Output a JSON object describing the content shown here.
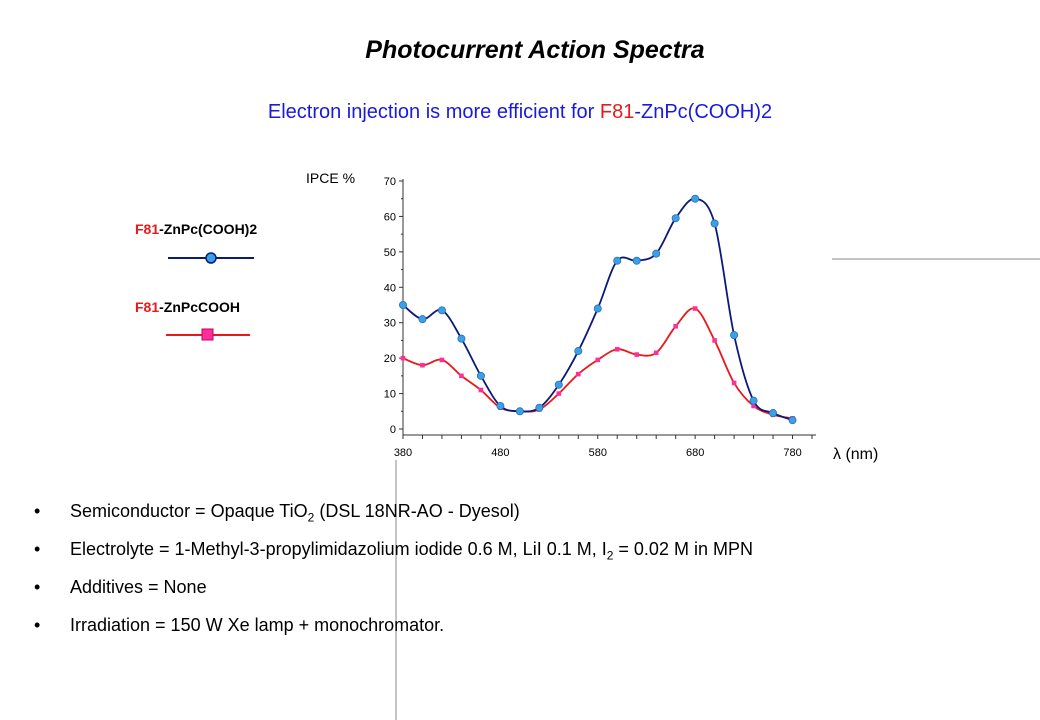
{
  "title": "Photocurrent Action Spectra",
  "subtitle": {
    "prefix": "Electron injection is more efficient for ",
    "highlight": "F81",
    "suffix": "-ZnPc(COOH)2"
  },
  "legend": [
    {
      "prefix": "F81",
      "suffix": "-ZnPc(COOH)2",
      "color": "#0a1a7a",
      "marker_color": "#3aa0e8",
      "marker": "circle"
    },
    {
      "prefix": "F81",
      "suffix": "-ZnPcCOOH",
      "color": "#e8191a",
      "marker_color": "#ff2f9a",
      "marker": "square"
    }
  ],
  "bullets": [
    {
      "symbol": "•",
      "parts": [
        "Semiconductor = Opaque TiO",
        "2",
        " (DSL 18NR-AO  - Dyesol)"
      ]
    },
    {
      "symbol": "•",
      "parts": [
        "Electrolyte =  1-Methyl-3-propylimidazolium  iodide 0.6 M, LiI 0.1 M,  I",
        "2",
        " = 0.02 M in MPN"
      ]
    },
    {
      "symbol": "•",
      "parts": [
        "Additives =  None"
      ]
    },
    {
      "symbol": "•",
      "parts": [
        "Irradiation = 150 W Xe lamp + monochromator."
      ]
    }
  ],
  "chart_data": {
    "type": "line",
    "ylabel": "IPCE %",
    "xlabel": "λ (nm)",
    "xlim": [
      380,
      800
    ],
    "ylim": [
      0,
      70
    ],
    "xticks": [
      380,
      480,
      580,
      680,
      780
    ],
    "yticks": [
      0,
      10,
      20,
      30,
      40,
      50,
      60,
      70
    ],
    "series": [
      {
        "name": "F81-ZnPc(COOH)2",
        "x": [
          380,
          400,
          420,
          440,
          460,
          480,
          500,
          520,
          540,
          560,
          580,
          600,
          620,
          640,
          660,
          680,
          700,
          720,
          740,
          760,
          780
        ],
        "values": [
          35,
          31,
          33.5,
          25.5,
          15,
          6.5,
          5,
          6,
          12.5,
          22,
          34,
          47.5,
          47.5,
          49.5,
          59.5,
          65,
          58,
          26.5,
          8,
          4.5,
          2.5
        ]
      },
      {
        "name": "F81-ZnPcCOOH",
        "x": [
          380,
          400,
          420,
          440,
          460,
          480,
          500,
          520,
          540,
          560,
          580,
          600,
          620,
          640,
          660,
          680,
          700,
          720,
          740,
          760,
          780
        ],
        "values": [
          20,
          18,
          19.5,
          15,
          11,
          6,
          5,
          5.5,
          10,
          15.5,
          19.5,
          22.5,
          21,
          21.5,
          29,
          34,
          25,
          13,
          6.5,
          4,
          3
        ]
      }
    ]
  }
}
